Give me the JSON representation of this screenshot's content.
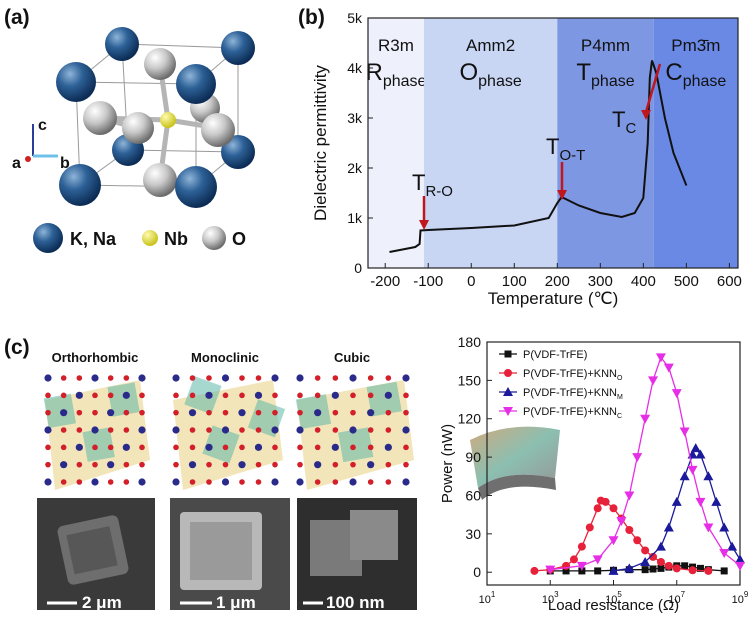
{
  "panels": {
    "a": {
      "label": "(a)",
      "axes": [
        "c",
        "a",
        "b"
      ],
      "legend": [
        "K, Na",
        "Nb",
        "O"
      ]
    },
    "b": {
      "label": "(b)"
    },
    "c": {
      "label": "(c)",
      "structures": [
        "Orthorhombic",
        "Monoclinic",
        "Cubic"
      ],
      "scale_bars": [
        "2 μm",
        "1 μm",
        "100 nm"
      ]
    }
  },
  "chart_data": [
    {
      "type": "line",
      "x_label": "Temperature (℃)",
      "y_label": "Dielectric permittivity",
      "xlim": [
        -240,
        620
      ],
      "ylim": [
        0,
        5000
      ],
      "xticks": [
        -200,
        -100,
        0,
        100,
        200,
        300,
        400,
        500,
        600
      ],
      "yticks": [
        0,
        {
          "value": 1000,
          "label": "1k"
        },
        {
          "value": 2000,
          "label": "2k"
        },
        {
          "value": 3000,
          "label": "3k"
        },
        {
          "value": 4000,
          "label": "4k"
        },
        {
          "value": 5000,
          "label": "5k"
        }
      ],
      "regions": [
        {
          "from": -240,
          "to": -110,
          "color": "#eef1fb",
          "symmetry": "R3m",
          "phase": "R",
          "sub": "phase"
        },
        {
          "from": -110,
          "to": 200,
          "color": "#c8d5f3",
          "symmetry": "Amm2",
          "phase": "O",
          "sub": "phase"
        },
        {
          "from": 200,
          "to": 424,
          "color": "#7e97e3",
          "symmetry": "P4mm",
          "phase": "T",
          "sub": "phase"
        },
        {
          "from": 424,
          "to": 620,
          "color": "#6a89e4",
          "symmetry": "Pm3̄m",
          "phase": "C",
          "sub": "phase"
        }
      ],
      "annotations": [
        {
          "text": "T",
          "sub": "R-O"
        },
        {
          "text": "T",
          "sub": "O-T"
        },
        {
          "text": "T",
          "sub": "C"
        }
      ],
      "color": "#111111",
      "x": [
        -190,
        -130,
        -120,
        -118,
        -100,
        0,
        100,
        180,
        200,
        210,
        250,
        300,
        350,
        380,
        400,
        410,
        415,
        420,
        430,
        450,
        470,
        500
      ],
      "values": [
        320,
        420,
        480,
        750,
        760,
        800,
        850,
        1000,
        1300,
        1420,
        1250,
        1100,
        1020,
        1100,
        1400,
        2500,
        3800,
        4150,
        3900,
        3000,
        2300,
        1650
      ]
    },
    {
      "type": "line",
      "x_label": "Load resistance (Ω)",
      "y_label": "Power (nW)",
      "xscale": "log",
      "xlim": [
        10,
        1000000000.0
      ],
      "ylim": [
        -10,
        180
      ],
      "xticks": [
        {
          "value": 10,
          "label": "10",
          "exp": "1"
        },
        {
          "value": 1000,
          "label": "10",
          "exp": "3"
        },
        {
          "value": 100000.0,
          "label": "10",
          "exp": "5"
        },
        {
          "value": 10000000.0,
          "label": "10",
          "exp": "7"
        },
        {
          "value": 1000000000.0,
          "label": "10",
          "exp": "9"
        }
      ],
      "yticks": [
        0,
        30,
        60,
        90,
        120,
        150,
        180
      ],
      "series": [
        {
          "name": "P(VDF-TrFE)",
          "subscript": "",
          "color": "#111111",
          "marker": "square",
          "x": [
            1000,
            3162,
            10000.0,
            31623,
            100000.0,
            316228,
            1000000.0,
            1778279,
            3162278,
            5623413,
            10000000.0,
            17782794,
            31622777,
            56234133,
            100000000.0,
            316227766
          ],
          "values": [
            1,
            1,
            1,
            1,
            1.5,
            2,
            2,
            2.5,
            3,
            4,
            5,
            5,
            4,
            3,
            2,
            1
          ]
        },
        {
          "name": "P(VDF-TrFE)+KNN",
          "subscript": "O",
          "color": "#e8213a",
          "marker": "circle",
          "x": [
            316,
            1000,
            3162,
            5623,
            10000.0,
            17783,
            31623,
            39811,
            56234,
            100000.0,
            177828,
            316228,
            562341,
            1000000.0,
            1778279,
            3162278,
            5623413,
            10000000.0,
            31622777,
            100000000.0
          ],
          "values": [
            1,
            2,
            5,
            10,
            20,
            35,
            50,
            56,
            55,
            50,
            42,
            33,
            25,
            17,
            12,
            8,
            5,
            3,
            1.5,
            1
          ]
        },
        {
          "name": "P(VDF-TrFE)+KNN",
          "subscript": "M",
          "color": "#1a1a9a",
          "marker": "triangle-up",
          "x": [
            100000.0,
            316228,
            1000000.0,
            3162278,
            5623413,
            10000000.0,
            17782794,
            31622777,
            39810717,
            56234133,
            100000000.0,
            177827941,
            316227766,
            562341325,
            1000000000.0
          ],
          "values": [
            1,
            3,
            8,
            20,
            35,
            55,
            75,
            92,
            97,
            92,
            75,
            55,
            35,
            20,
            10
          ]
        },
        {
          "name": "P(VDF-TrFE)+KNN",
          "subscript": "C",
          "color": "#e62ee6",
          "marker": "triangle-down",
          "x": [
            1000,
            10000.0,
            31623,
            100000.0,
            177828,
            316228,
            562341,
            1000000.0,
            1778279,
            3162278,
            5623413,
            10000000.0,
            17782794,
            31622777,
            56234133,
            100000000.0,
            316227766,
            1000000000.0
          ],
          "values": [
            2,
            5,
            10,
            25,
            40,
            60,
            90,
            120,
            150,
            168,
            160,
            140,
            110,
            80,
            55,
            35,
            15,
            5
          ]
        }
      ]
    }
  ]
}
